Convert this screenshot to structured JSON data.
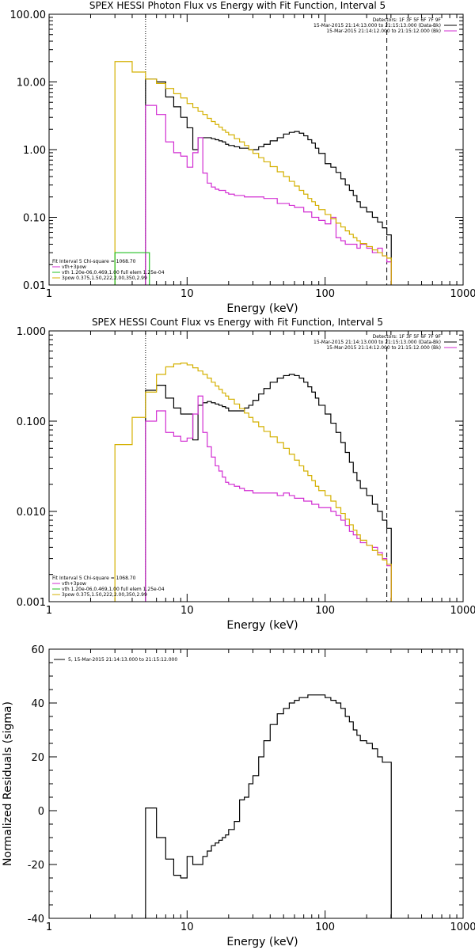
{
  "chart_data": [
    {
      "type": "line",
      "title": "SPEX HESSI Photon Flux vs Energy with Fit Function, Interval 5",
      "xlabel": "Energy (keV)",
      "ylabel": "",
      "xscale": "log",
      "yscale": "log",
      "xlim": [
        1,
        1000
      ],
      "ylim": [
        0.01,
        100
      ],
      "x_tick_labels": [
        "1",
        "10",
        "100",
        "1000"
      ],
      "y_tick_labels": [
        "0.01",
        "0.10",
        "1.00",
        "10.00",
        "100.00"
      ],
      "legend_top": [
        "Detectors: 1F 3F 5F 6F 7F 9F",
        "15-Mar-2015 21:14:13.000 to 21:15:13.000 (Data-Bk)",
        "15-Mar-2015 21:14:12.000 to 21:15:12.000 (Bk)"
      ],
      "legend_top_colors": [
        "",
        "#000000",
        "#d22ed2"
      ],
      "legend_bottom": [
        "Fit Interval 5   Chi-square = 1068.70",
        "vth+3pow",
        "vth 1.20e-06,0.469,1.00  full elem 1.25e-04",
        "3pow 0.375,1.50,222,2.00,350,2.99"
      ],
      "legend_bottom_colors": [
        "",
        "#d22ed2",
        "#22c022",
        "#d4b000"
      ],
      "vlines": [
        5,
        280
      ],
      "series": [
        {
          "name": "",
          "color": "#000000",
          "x": [
            5,
            6,
            7,
            8,
            9,
            10,
            11,
            12,
            13,
            14,
            15,
            16,
            17,
            18,
            19,
            20,
            22,
            24,
            26,
            28,
            30,
            33,
            36,
            40,
            45,
            50,
            55,
            60,
            65,
            70,
            75,
            80,
            85,
            90,
            100,
            110,
            120,
            130,
            140,
            150,
            160,
            170,
            180,
            200,
            220,
            240,
            260,
            280
          ],
          "y": [
            11,
            10,
            6,
            4.3,
            3,
            2.1,
            1,
            1.5,
            1.5,
            1.5,
            1.45,
            1.4,
            1.35,
            1.3,
            1.2,
            1.15,
            1.1,
            1.05,
            1.05,
            1,
            1,
            1.1,
            1.2,
            1.35,
            1.5,
            1.7,
            1.8,
            1.85,
            1.75,
            1.6,
            1.4,
            1.25,
            1.05,
            0.88,
            0.62,
            0.55,
            0.46,
            0.37,
            0.3,
            0.25,
            0.21,
            0.17,
            0.14,
            0.12,
            0.1,
            0.085,
            0.07,
            0.055
          ]
        },
        {
          "name": "",
          "color": "#d22ed2",
          "x": [
            5,
            6,
            7,
            8,
            9,
            10,
            11,
            12,
            13,
            14,
            15,
            16,
            17,
            18,
            19,
            20,
            22,
            24,
            26,
            28,
            30,
            33,
            36,
            40,
            45,
            50,
            55,
            60,
            65,
            70,
            75,
            80,
            85,
            90,
            100,
            110,
            120,
            130,
            140,
            150,
            160,
            170,
            180,
            200,
            220,
            240,
            260,
            280
          ],
          "y": [
            4.5,
            3.3,
            1.3,
            0.9,
            0.8,
            0.55,
            0.9,
            1.5,
            0.45,
            0.32,
            0.28,
            0.26,
            0.25,
            0.25,
            0.23,
            0.22,
            0.21,
            0.21,
            0.2,
            0.2,
            0.2,
            0.2,
            0.19,
            0.19,
            0.16,
            0.16,
            0.15,
            0.14,
            0.14,
            0.12,
            0.12,
            0.1,
            0.1,
            0.09,
            0.08,
            0.1,
            0.05,
            0.045,
            0.04,
            0.04,
            0.04,
            0.035,
            0.04,
            0.035,
            0.03,
            0.035,
            0.027,
            0.022
          ]
        },
        {
          "name": "",
          "color": "#d4b000",
          "x": [
            3,
            4,
            5,
            6,
            7,
            8,
            9,
            10,
            11,
            12,
            13,
            14,
            15,
            16,
            17,
            18,
            19,
            20,
            22,
            24,
            26,
            28,
            30,
            33,
            36,
            40,
            45,
            50,
            55,
            60,
            65,
            70,
            75,
            80,
            85,
            90,
            100,
            110,
            120,
            130,
            140,
            150,
            160,
            170,
            180,
            200,
            220,
            240,
            260,
            280
          ],
          "y": [
            20,
            14,
            11,
            9.5,
            8,
            6.7,
            5.8,
            4.8,
            4.2,
            3.7,
            3.3,
            2.9,
            2.6,
            2.35,
            2.15,
            1.95,
            1.8,
            1.65,
            1.45,
            1.3,
            1.15,
            1,
            0.88,
            0.76,
            0.66,
            0.56,
            0.47,
            0.4,
            0.34,
            0.29,
            0.25,
            0.22,
            0.19,
            0.17,
            0.15,
            0.13,
            0.11,
            0.095,
            0.082,
            0.072,
            0.063,
            0.056,
            0.05,
            0.045,
            0.041,
            0.037,
            0.033,
            0.03,
            0.027,
            0.025
          ]
        },
        {
          "name": "",
          "color": "#22c022",
          "x": [
            3,
            4
          ],
          "y": [
            0.03,
            0.03
          ]
        }
      ]
    },
    {
      "type": "line",
      "title": "SPEX HESSI Count Flux vs Energy with Fit Function, Interval 5",
      "xlabel": "Energy (keV)",
      "ylabel": "",
      "xscale": "log",
      "yscale": "log",
      "xlim": [
        1,
        1000
      ],
      "ylim": [
        0.001,
        1
      ],
      "x_tick_labels": [
        "1",
        "10",
        "100",
        "1000"
      ],
      "y_tick_labels": [
        "0.001",
        "0.010",
        "0.100",
        "1.000"
      ],
      "legend_top": [
        "Detectors: 1F 3F 5F 6F 7F 9F",
        "15-Mar-2015 21:14:13.000 to 21:15:13.000 (Data-Bk)",
        "15-Mar-2015 21:14:12.000 to 21:15:12.000 (Bk)"
      ],
      "legend_top_colors": [
        "",
        "#000000",
        "#d22ed2"
      ],
      "legend_bottom": [
        "Fit Interval 5   Chi-square = 1068.70",
        "vth+3pow",
        "vth 1.20e-06,0.469,1.00  full elem 1.25e-04",
        "3pow 0.375,1.50,222,2.00,350,2.99"
      ],
      "legend_bottom_colors": [
        "",
        "#d22ed2",
        "#22c022",
        "#d4b000"
      ],
      "vlines": [
        5,
        280
      ],
      "series": [
        {
          "name": "",
          "color": "#000000",
          "x": [
            5,
            6,
            7,
            8,
            9,
            10,
            11,
            12,
            13,
            14,
            15,
            16,
            17,
            18,
            19,
            20,
            22,
            24,
            26,
            28,
            30,
            33,
            36,
            40,
            45,
            50,
            55,
            60,
            65,
            70,
            75,
            80,
            85,
            90,
            100,
            110,
            120,
            130,
            140,
            150,
            160,
            170,
            180,
            200,
            220,
            240,
            260,
            280
          ],
          "y": [
            0.22,
            0.25,
            0.18,
            0.14,
            0.12,
            0.12,
            0.062,
            0.15,
            0.16,
            0.165,
            0.16,
            0.155,
            0.15,
            0.145,
            0.14,
            0.13,
            0.13,
            0.13,
            0.14,
            0.15,
            0.17,
            0.2,
            0.23,
            0.27,
            0.3,
            0.32,
            0.33,
            0.32,
            0.3,
            0.27,
            0.24,
            0.21,
            0.18,
            0.15,
            0.12,
            0.095,
            0.075,
            0.058,
            0.045,
            0.035,
            0.027,
            0.022,
            0.018,
            0.015,
            0.012,
            0.01,
            0.008,
            0.0065
          ]
        },
        {
          "name": "",
          "color": "#d22ed2",
          "x": [
            5,
            6,
            7,
            8,
            9,
            10,
            11,
            12,
            13,
            14,
            15,
            16,
            17,
            18,
            19,
            20,
            22,
            24,
            26,
            28,
            30,
            33,
            36,
            40,
            45,
            50,
            55,
            60,
            65,
            70,
            75,
            80,
            85,
            90,
            100,
            110,
            120,
            130,
            140,
            150,
            160,
            170,
            180,
            200,
            220,
            240,
            260,
            280
          ],
          "y": [
            0.1,
            0.13,
            0.075,
            0.068,
            0.06,
            0.065,
            0.12,
            0.19,
            0.075,
            0.052,
            0.04,
            0.032,
            0.028,
            0.024,
            0.021,
            0.02,
            0.019,
            0.018,
            0.017,
            0.017,
            0.016,
            0.016,
            0.016,
            0.016,
            0.015,
            0.016,
            0.015,
            0.014,
            0.014,
            0.013,
            0.013,
            0.012,
            0.012,
            0.011,
            0.011,
            0.01,
            0.009,
            0.008,
            0.007,
            0.006,
            0.0055,
            0.005,
            0.0045,
            0.0042,
            0.004,
            0.0035,
            0.003,
            0.0025
          ]
        },
        {
          "name": "",
          "color": "#d4b000",
          "x": [
            3,
            4,
            5,
            6,
            7,
            8,
            9,
            10,
            11,
            12,
            13,
            14,
            15,
            16,
            17,
            18,
            19,
            20,
            22,
            24,
            26,
            28,
            30,
            33,
            36,
            40,
            45,
            50,
            55,
            60,
            65,
            70,
            75,
            80,
            85,
            90,
            100,
            110,
            120,
            130,
            140,
            150,
            160,
            170,
            180,
            200,
            220,
            240,
            260,
            280
          ],
          "y": [
            0.055,
            0.11,
            0.21,
            0.33,
            0.4,
            0.43,
            0.44,
            0.42,
            0.39,
            0.36,
            0.33,
            0.3,
            0.27,
            0.245,
            0.225,
            0.205,
            0.19,
            0.175,
            0.155,
            0.138,
            0.123,
            0.11,
            0.098,
            0.087,
            0.077,
            0.067,
            0.058,
            0.05,
            0.043,
            0.037,
            0.032,
            0.028,
            0.025,
            0.022,
            0.019,
            0.017,
            0.015,
            0.013,
            0.011,
            0.0095,
            0.0082,
            0.0071,
            0.0062,
            0.0055,
            0.0048,
            0.0042,
            0.0037,
            0.0033,
            0.0029,
            0.0026
          ]
        }
      ]
    },
    {
      "type": "line",
      "title": "",
      "xlabel": "Energy (keV)",
      "ylabel": "Normalized Residuals (sigma)",
      "xscale": "log",
      "yscale": "linear",
      "xlim": [
        1,
        1000
      ],
      "ylim": [
        -40,
        60
      ],
      "x_tick_labels": [
        "1",
        "10",
        "100",
        "1000"
      ],
      "y_tick_labels": [
        "-40",
        "-20",
        "0",
        "20",
        "40",
        "60"
      ],
      "legend": [
        "5, 15-Mar-2015 21:14:13.000 to 21:15:12.000"
      ],
      "series": [
        {
          "name": "",
          "color": "#000000",
          "x": [
            5,
            6,
            7,
            8,
            9,
            10,
            11,
            12,
            13,
            14,
            15,
            16,
            17,
            18,
            19,
            20,
            22,
            24,
            26,
            28,
            30,
            33,
            36,
            40,
            45,
            50,
            55,
            60,
            65,
            70,
            75,
            80,
            85,
            90,
            100,
            110,
            120,
            130,
            140,
            150,
            160,
            170,
            180,
            200,
            220,
            240,
            260,
            280
          ],
          "y": [
            1,
            -10,
            -18,
            -24,
            -25,
            -17,
            -20,
            -20,
            -17,
            -15,
            -13,
            -12,
            -11,
            -10,
            -9,
            -7,
            -4,
            4,
            5,
            10,
            13,
            20,
            26,
            32,
            36,
            38,
            40,
            41,
            42,
            42,
            43,
            43,
            43,
            43,
            42,
            41,
            40,
            38,
            35,
            33,
            30,
            28,
            26,
            25,
            23,
            20,
            18,
            18
          ]
        }
      ]
    }
  ]
}
